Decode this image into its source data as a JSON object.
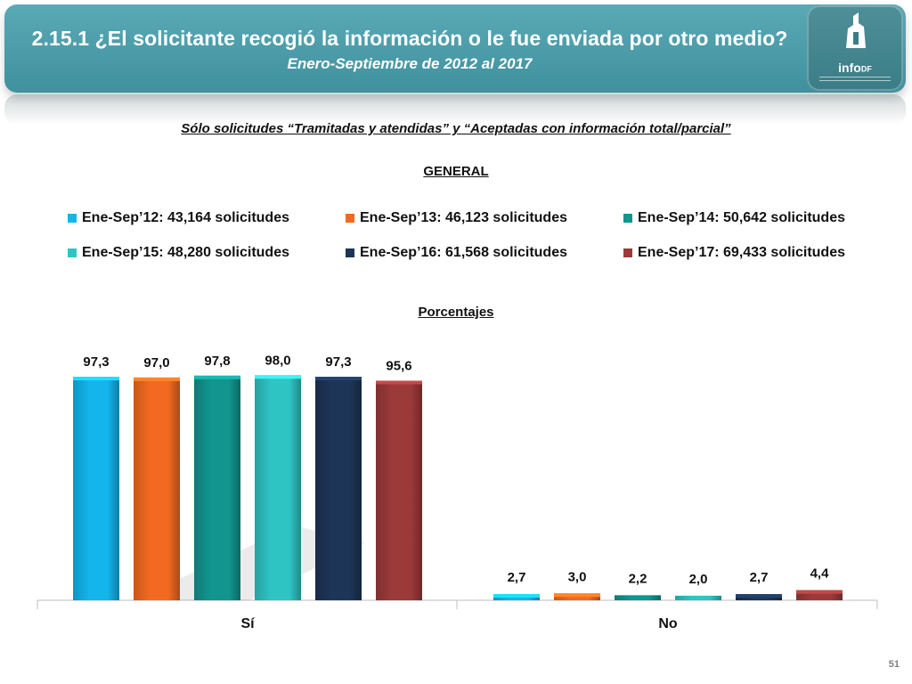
{
  "header": {
    "title": "2.15.1 ¿El solicitante recogió la información o le fue enviada por otro medio?",
    "subtitle": "Enero-Septiembre de 2012 al 2017",
    "logo_text": "info",
    "logo_sub": "DF"
  },
  "note": "Sólo solicitudes “Tramitadas y atendidas” y “Aceptadas con información total/parcial”",
  "section_label": "GENERAL",
  "units_label": "Porcentajes",
  "page_number": "51",
  "chart_data": {
    "type": "bar",
    "categories": [
      "Sí",
      "No"
    ],
    "series": [
      {
        "name": "Ene-Sep’12: 43,164 solicitudes",
        "color": "#13b5ea",
        "values": [
          97.3,
          2.7
        ],
        "labels": [
          "97,3",
          "2,7"
        ]
      },
      {
        "name": "Ene-Sep’13: 46,123 solicitudes",
        "color": "#f26a21",
        "values": [
          97.0,
          3.0
        ],
        "labels": [
          "97,0",
          "3,0"
        ]
      },
      {
        "name": "Ene-Sep’14: 50,642 solicitudes",
        "color": "#12958f",
        "values": [
          97.8,
          2.2
        ],
        "labels": [
          "97,8",
          "2,2"
        ]
      },
      {
        "name": "Ene-Sep’15: 48,280 solicitudes",
        "color": "#2fc4c4",
        "values": [
          98.0,
          2.0
        ],
        "labels": [
          "98,0",
          "2,0"
        ]
      },
      {
        "name": "Ene-Sep’16: 61,568 solicitudes",
        "color": "#1d3557",
        "values": [
          97.3,
          2.7
        ],
        "labels": [
          "97,3",
          "2,7"
        ]
      },
      {
        "name": "Ene-Sep’17: 69,433 solicitudes",
        "color": "#9c3a3a",
        "values": [
          95.6,
          4.4
        ],
        "labels": [
          "95,6",
          "4,4"
        ]
      }
    ],
    "ylim": [
      0,
      100
    ],
    "grid": false,
    "legend_position": "top"
  }
}
